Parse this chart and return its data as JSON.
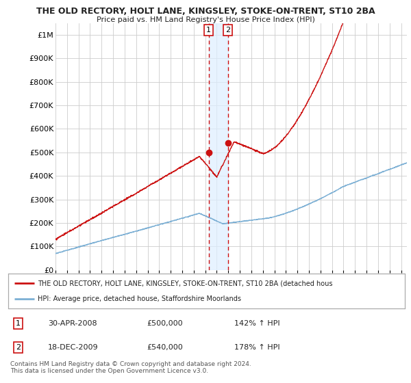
{
  "title": "THE OLD RECTORY, HOLT LANE, KINGSLEY, STOKE-ON-TRENT, ST10 2BA",
  "subtitle": "Price paid vs. HM Land Registry's House Price Index (HPI)",
  "hpi_color": "#7bafd4",
  "property_color": "#cc1111",
  "marker_color": "#cc1111",
  "vline_color": "#cc1111",
  "shade_color": "#ddeeff",
  "ylim": [
    0,
    1050000
  ],
  "yticks": [
    0,
    100000,
    200000,
    300000,
    400000,
    500000,
    600000,
    700000,
    800000,
    900000,
    1000000
  ],
  "ytick_labels": [
    "£0",
    "£100K",
    "£200K",
    "£300K",
    "£400K",
    "£500K",
    "£600K",
    "£700K",
    "£800K",
    "£900K",
    "£1M"
  ],
  "legend_property": "THE OLD RECTORY, HOLT LANE, KINGSLEY, STOKE-ON-TRENT, ST10 2BA (detached hous",
  "legend_hpi": "HPI: Average price, detached house, Staffordshire Moorlands",
  "transaction1_date": "30-APR-2008",
  "transaction1_price": "£500,000",
  "transaction1_hpi": "142% ↑ HPI",
  "transaction1_price_val": 500000,
  "transaction1_year": 2008.29,
  "transaction2_date": "18-DEC-2009",
  "transaction2_price": "£540,000",
  "transaction2_hpi": "178% ↑ HPI",
  "transaction2_price_val": 540000,
  "transaction2_year": 2009.96,
  "footer": "Contains HM Land Registry data © Crown copyright and database right 2024.\nThis data is licensed under the Open Government Licence v3.0.",
  "background_color": "#ffffff",
  "grid_color": "#cccccc",
  "xlim_start": 1995,
  "xlim_end": 2025.5
}
